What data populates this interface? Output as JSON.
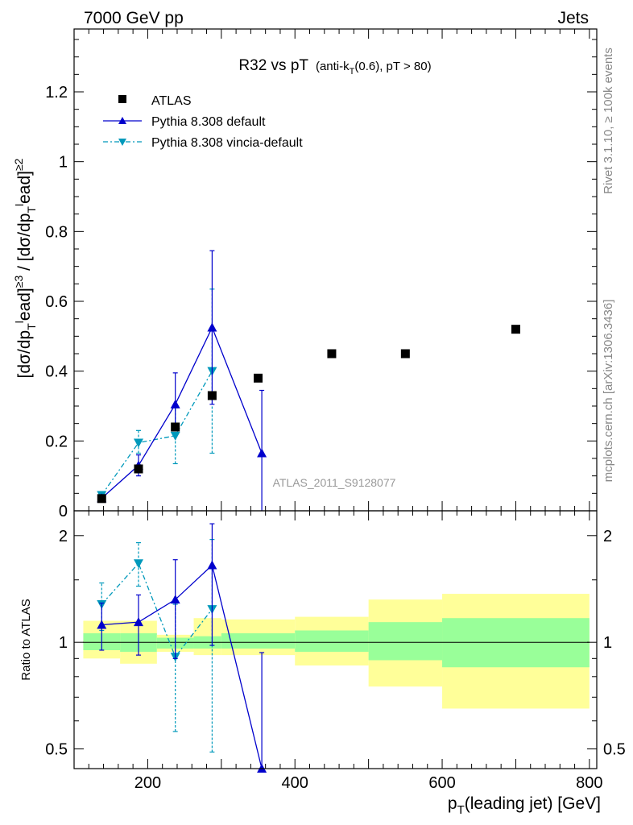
{
  "header": {
    "left": "7000 GeV pp",
    "right": "Jets"
  },
  "side_labels": {
    "rivet": "Rivet 3.1.10, ≥ 100k events",
    "mcplots": "mcplots.cern.ch [arXiv:1306.3436]"
  },
  "chart_data": [
    {
      "type": "scatter",
      "panel": "main",
      "title": "R32 vs pT",
      "title_sub": "(anti-k",
      "title_sub_sub": "T",
      "title_sub_end": "(0.6), pT > 80)",
      "ylabel": "[dσ/dp_T^lead]^≥3 / [dσ/dp_T^lead]^≥2",
      "ylim": [
        0,
        1.38
      ],
      "xlim": [
        100,
        810
      ],
      "yticks": [
        0,
        0.2,
        0.4,
        0.6,
        0.8,
        1,
        1.2
      ],
      "ytick_labels": [
        "0",
        "0.2",
        "0.4",
        "0.6",
        "0.8",
        "1",
        "1.2"
      ],
      "watermark": "ATLAS_2011_S9128077",
      "legend_position": "top-left",
      "series": [
        {
          "name": "ATLAS",
          "color": "#000000",
          "marker": "square",
          "line": "none",
          "x": [
            137.5,
            187.5,
            237.5,
            287.5,
            350,
            450,
            550,
            700
          ],
          "y": [
            0.035,
            0.12,
            0.24,
            0.33,
            0.38,
            0.45,
            0.45,
            0.52
          ],
          "yerr_lo": [
            0,
            0,
            0,
            0,
            0,
            0,
            0,
            0
          ],
          "yerr_hi": [
            0,
            0,
            0,
            0,
            0,
            0,
            0,
            0
          ]
        },
        {
          "name": "Pythia 8.308 default",
          "color": "#0000cc",
          "marker": "triangle-up",
          "line": "solid",
          "x": [
            137.5,
            187.5,
            237.5,
            287.5,
            355
          ],
          "y": [
            0.036,
            0.13,
            0.305,
            0.525,
            0.165
          ],
          "yerr_lo": [
            0.008,
            0.03,
            0.075,
            0.22,
            0.2
          ],
          "yerr_hi": [
            0.008,
            0.03,
            0.09,
            0.22,
            0.18
          ]
        },
        {
          "name": "Pythia 8.308 vincia-default",
          "color": "#0099bb",
          "marker": "triangle-down",
          "line": "dashdot",
          "x": [
            137.5,
            187.5,
            237.5,
            287.5
          ],
          "y": [
            0.045,
            0.195,
            0.215,
            0.4
          ],
          "yerr_lo": [
            0.01,
            0.03,
            0.08,
            0.235
          ],
          "yerr_hi": [
            0.01,
            0.035,
            0.08,
            0.235
          ]
        }
      ]
    },
    {
      "type": "scatter",
      "panel": "ratio",
      "ylabel": "Ratio to ATLAS",
      "xlabel_main": "p",
      "xlabel_sub": "T",
      "xlabel_rest": "(leading jet) [GeV]",
      "ylim": [
        0.44,
        2.35
      ],
      "xlim": [
        100,
        810
      ],
      "xticks": [
        200,
        400,
        600,
        800
      ],
      "xtick_labels": [
        "200",
        "400",
        "600",
        "800"
      ],
      "yticks": [
        0.5,
        1,
        2
      ],
      "ytick_labels": [
        "0.5",
        "1",
        "2"
      ],
      "reference": 1,
      "bands": {
        "x_edges": [
          112.5,
          162.5,
          212.5,
          262.5,
          300,
          400,
          500,
          600,
          800
        ],
        "green_lo": [
          0.95,
          0.94,
          0.96,
          0.96,
          0.96,
          0.94,
          0.89,
          0.85
        ],
        "green_hi": [
          1.06,
          1.06,
          1.03,
          1.04,
          1.06,
          1.08,
          1.14,
          1.17
        ],
        "yellow_lo": [
          0.9,
          0.87,
          0.94,
          0.92,
          0.92,
          0.86,
          0.75,
          0.65
        ],
        "yellow_hi": [
          1.15,
          1.15,
          1.05,
          1.17,
          1.16,
          1.18,
          1.32,
          1.37
        ],
        "green_color": "#99ff99",
        "yellow_color": "#ffff99"
      },
      "series": [
        {
          "name": "Pythia 8.308 default",
          "color": "#0000cc",
          "marker": "triangle-up",
          "line": "solid",
          "x": [
            137.5,
            187.5,
            237.5,
            287.5,
            355
          ],
          "y": [
            1.12,
            1.14,
            1.32,
            1.65,
            0.425
          ],
          "yerr_lo": [
            0.17,
            0.22,
            0.42,
            0.67,
            0.0
          ],
          "yerr_hi": [
            0.17,
            0.22,
            0.39,
            0.51,
            0.51
          ]
        },
        {
          "name": "Pythia 8.308 vincia-default",
          "color": "#0099bb",
          "marker": "triangle-down",
          "line": "dashdot",
          "x": [
            137.5,
            187.5,
            237.5,
            287.5
          ],
          "y": [
            1.28,
            1.67,
            0.91,
            1.24
          ],
          "yerr_lo": [
            0.2,
            0.23,
            0.35,
            0.75
          ],
          "yerr_hi": [
            0.19,
            0.24,
            0.37,
            0.71
          ]
        }
      ]
    }
  ]
}
